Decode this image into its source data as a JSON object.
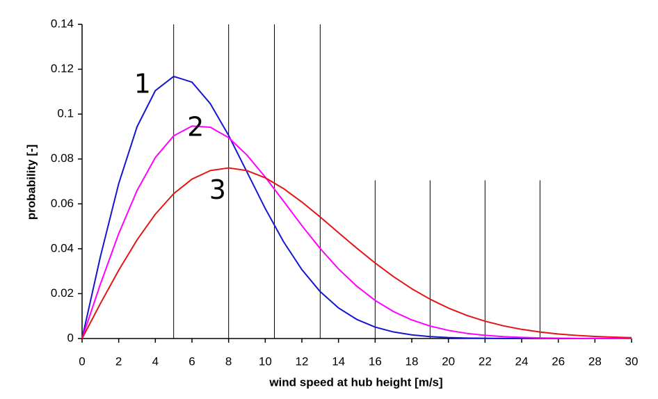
{
  "chart_data": {
    "type": "line",
    "x_label": "wind speed at hub height [m/s]",
    "y_label": "probability [-]",
    "x": [
      0,
      1,
      2,
      3,
      4,
      5,
      6,
      7,
      8,
      9,
      10,
      11,
      12,
      13,
      14,
      15,
      16,
      17,
      18,
      19,
      20,
      21,
      22,
      23,
      24,
      25,
      26,
      27,
      28,
      29,
      30
    ],
    "series": [
      {
        "color": "#1414d2",
        "values": [
          0,
          0.03649,
          0.06903,
          0.09435,
          0.11046,
          0.1168,
          0.11424,
          0.10467,
          0.09051,
          0.07424,
          0.05793,
          0.04313,
          0.03069,
          0.02089,
          0.01362,
          0.00851,
          0.0051,
          0.00293,
          0.00162,
          0.00086,
          0.00044,
          0.00021,
          0.0001,
          5e-05,
          2e-05,
          1e-05,
          0,
          0,
          0,
          0,
          0
        ]
      },
      {
        "color": "#ff00ff",
        "values": [
          0,
          0.02424,
          0.04674,
          0.06593,
          0.08067,
          0.0903,
          0.09467,
          0.09416,
          0.08952,
          0.08175,
          0.07194,
          0.06116,
          0.05031,
          0.0401,
          0.03101,
          0.02328,
          0.01697,
          0.01203,
          0.00829,
          0.00555,
          0.00362,
          0.0023,
          0.00142,
          0.00086,
          0.0005,
          0.00029,
          0.00016,
          9e-05,
          5e-05,
          2e-05,
          1e-05
        ]
      },
      {
        "color": "#e41414",
        "values": [
          0,
          0.01558,
          0.03044,
          0.04391,
          0.05541,
          0.06454,
          0.07103,
          0.07483,
          0.07602,
          0.07483,
          0.07162,
          0.0668,
          0.06082,
          0.05415,
          0.04717,
          0.04025,
          0.03365,
          0.02759,
          0.0222,
          0.01752,
          0.01358,
          0.01033,
          0.00772,
          0.00567,
          0.00409,
          0.0029,
          0.00202,
          0.00138,
          0.00093,
          0.00062,
          0.0004
        ]
      }
    ],
    "annotations": [
      {
        "text": "1",
        "x": 3.3,
        "y": 0.1128
      },
      {
        "text": "2",
        "x": 6.2,
        "y": 0.0935
      },
      {
        "text": "3",
        "x": 7.4,
        "y": 0.0655
      }
    ],
    "reference_lines": [
      {
        "x": 5,
        "y": [
          0,
          0.14
        ]
      },
      {
        "x": 8,
        "y": [
          0,
          0.14
        ]
      },
      {
        "x": 10.5,
        "y": [
          0,
          0.14
        ]
      },
      {
        "x": 13,
        "y": [
          0,
          0.14
        ]
      },
      {
        "x": 16,
        "y": [
          0,
          0.0705
        ]
      },
      {
        "x": 19,
        "y": [
          0,
          0.0705
        ]
      },
      {
        "x": 22,
        "y": [
          0,
          0.0705
        ]
      },
      {
        "x": 25,
        "y": [
          0,
          0.0705
        ]
      }
    ],
    "xlim": [
      0,
      30
    ],
    "xticks": [
      0,
      2,
      4,
      6,
      8,
      10,
      12,
      14,
      16,
      18,
      20,
      22,
      24,
      26,
      28,
      30
    ],
    "ylim": [
      0,
      0.14
    ],
    "yticks": [
      0,
      0.02,
      0.04,
      0.06,
      0.08,
      0.1,
      0.12,
      0.14
    ]
  }
}
